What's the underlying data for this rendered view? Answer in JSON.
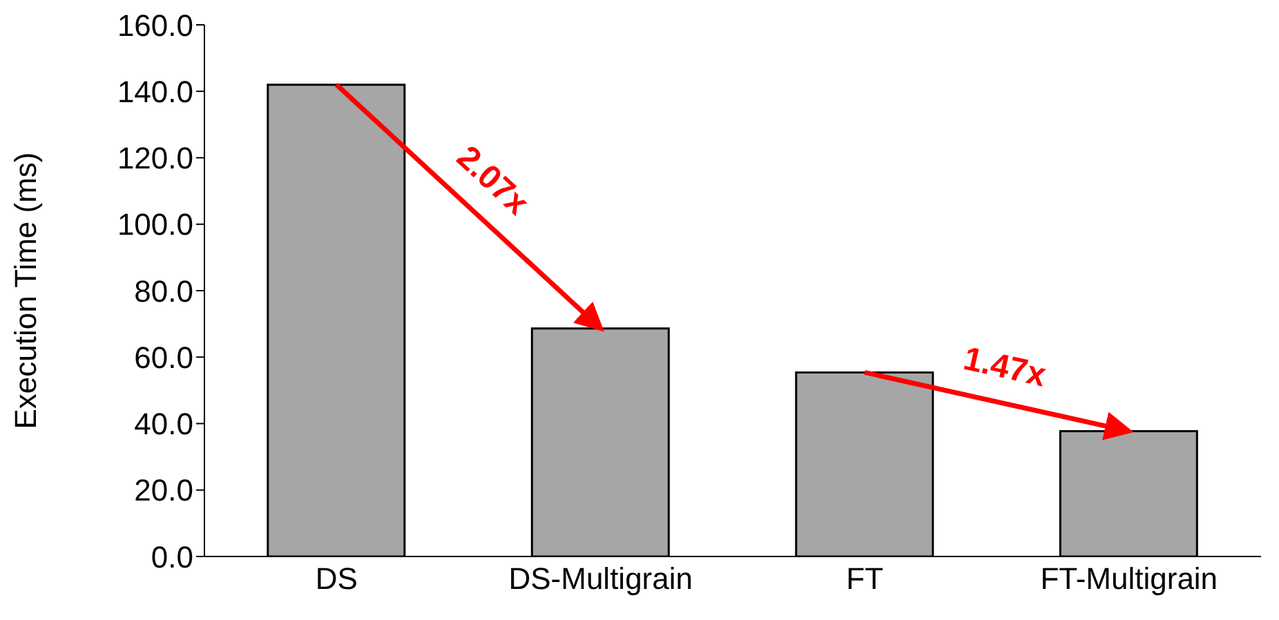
{
  "chart_data": {
    "type": "bar",
    "ylabel": "Execution Time (ms)",
    "categories": [
      "DS",
      "DS-Multigrain",
      "FT",
      "FT-Multigrain"
    ],
    "values": [
      142,
      68.6,
      55.4,
      37.7
    ],
    "color": "#a6a6a6",
    "ylim": [
      0,
      160
    ],
    "yticks": [
      {
        "value": 0,
        "label": "0.0"
      },
      {
        "value": 20,
        "label": "20.0"
      },
      {
        "value": 40,
        "label": "40.0"
      },
      {
        "value": 60,
        "label": "60.0"
      },
      {
        "value": 80,
        "label": "80.0"
      },
      {
        "value": 100,
        "label": "100.0"
      },
      {
        "value": 120,
        "label": "120.0"
      },
      {
        "value": 140,
        "label": "140.0"
      },
      {
        "value": 160,
        "label": "160.0"
      }
    ],
    "annotations": [
      "2.07x",
      "1.47x"
    ],
    "grid": false,
    "legend": false
  }
}
